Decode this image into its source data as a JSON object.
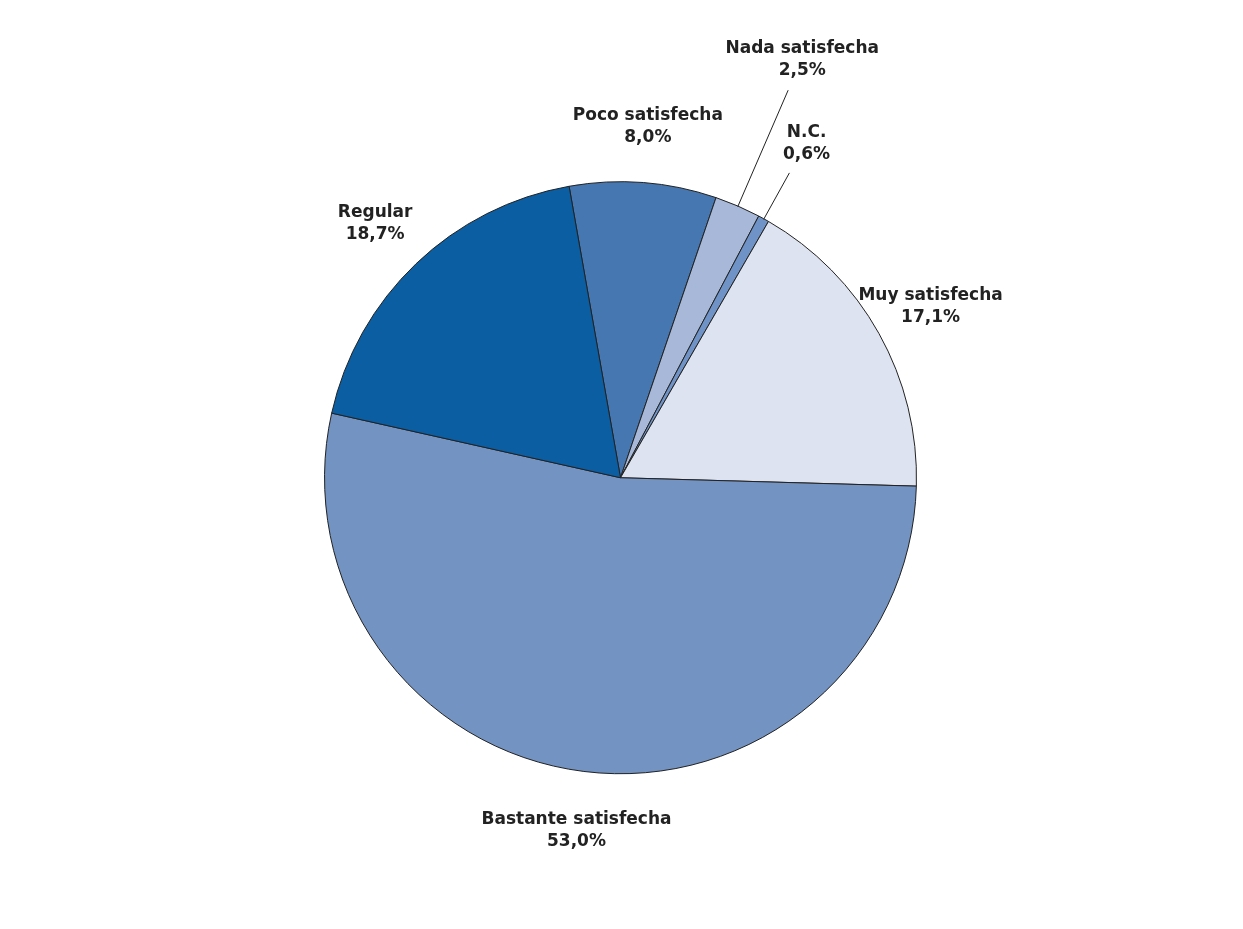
{
  "chart_data": {
    "type": "pie",
    "categories": [
      "Poco satisfecha",
      "Nada satisfecha",
      "N.C.",
      "Muy satisfecha",
      "Bastante satisfecha",
      "Regular"
    ],
    "values": [
      8.0,
      2.5,
      0.6,
      17.1,
      53.0,
      18.7
    ],
    "value_labels": [
      "8,0%",
      "2,5%",
      "0,6%",
      "17,1%",
      "53,0%",
      "18,7%"
    ],
    "colors": [
      "#4677b0",
      "#a7b8d8",
      "#6f93c6",
      "#dde3f0",
      "#7393c2",
      "#0b5ea2"
    ]
  }
}
